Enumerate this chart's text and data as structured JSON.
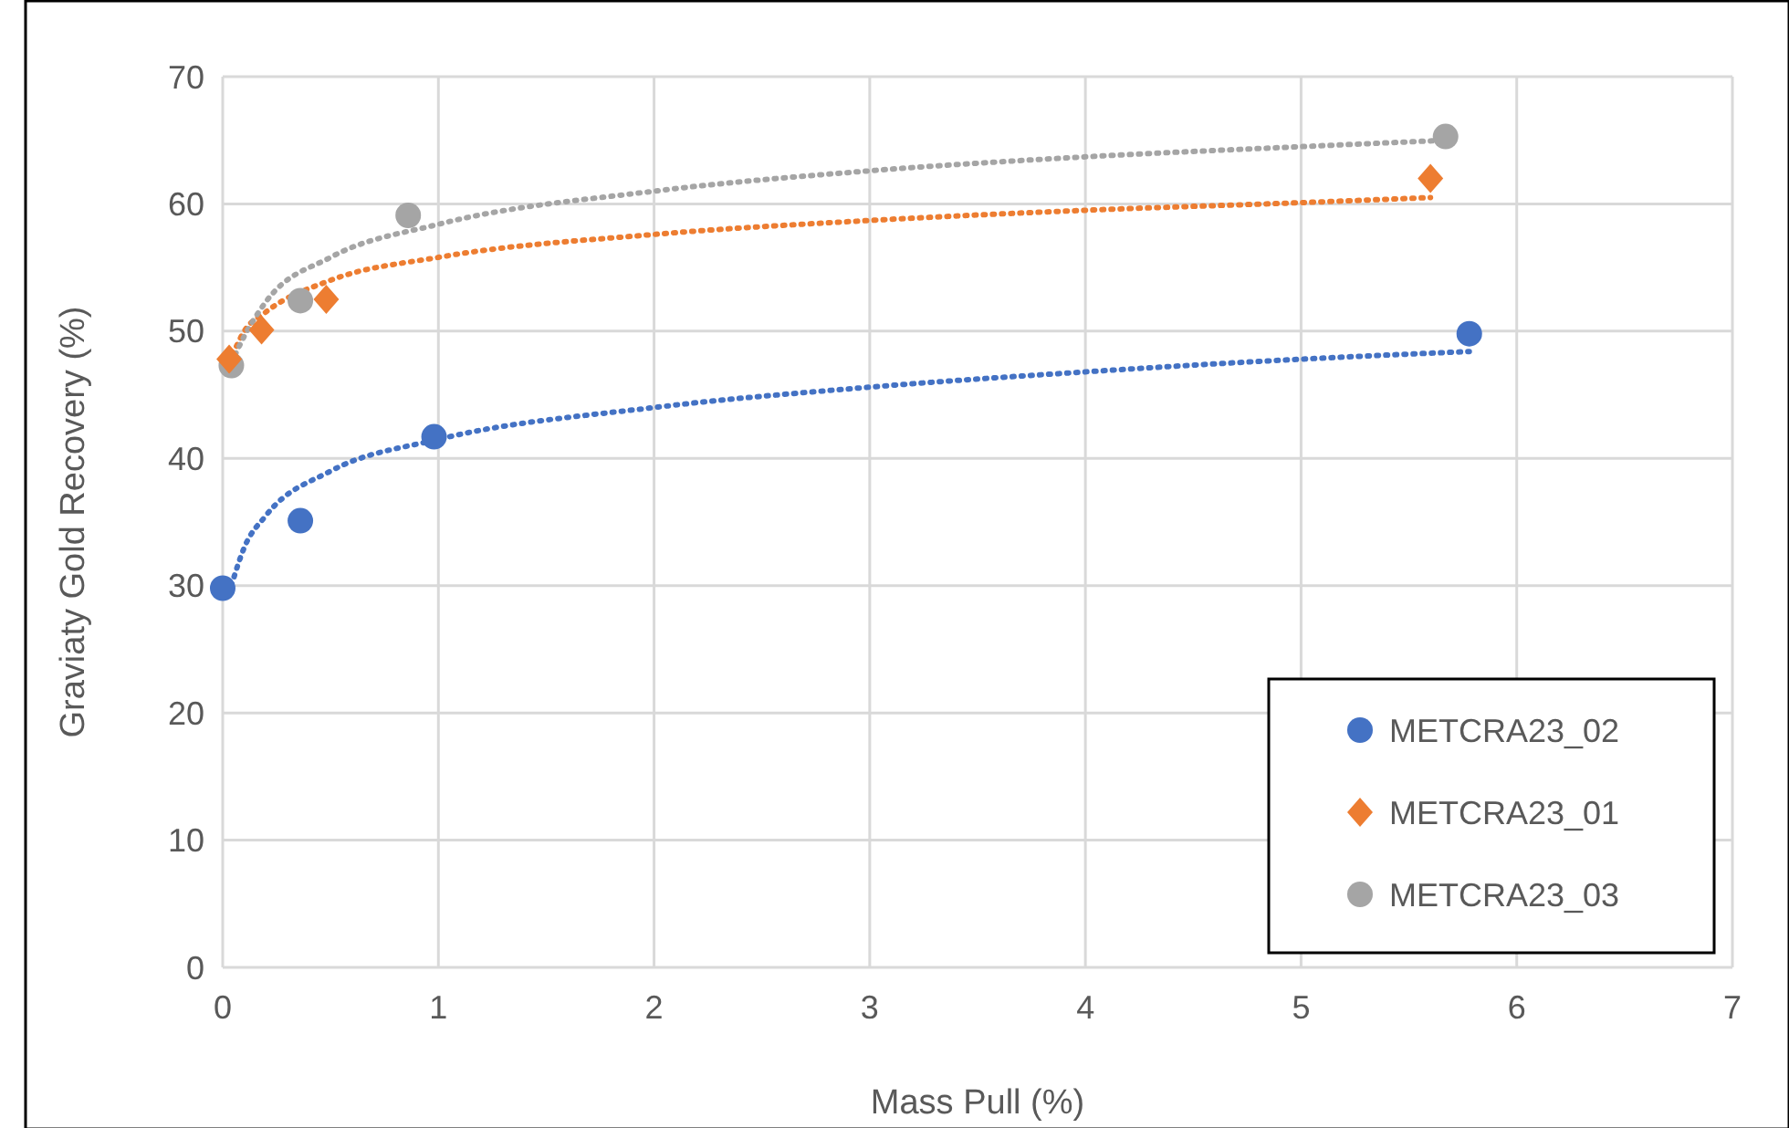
{
  "chart_data": {
    "type": "scatter",
    "xlabel": "Mass Pull (%)",
    "ylabel": "Graviaty Gold Recovery (%)",
    "xlim": [
      0,
      7
    ],
    "xticks": [
      0,
      1,
      2,
      3,
      4,
      5,
      6,
      7
    ],
    "ylim": [
      0,
      70
    ],
    "yticks": [
      0,
      10,
      20,
      30,
      40,
      50,
      60,
      70
    ],
    "grid": true,
    "legend": "bottom right",
    "series": [
      {
        "name": "METCRA23_02",
        "color": "#4472c4",
        "marker": "circle",
        "x": [
          0.0,
          0.36,
          0.98,
          5.78
        ],
        "values": [
          29.8,
          35.1,
          41.7,
          49.8
        ]
      },
      {
        "name": "METCRA23_01",
        "color": "#ed7d31",
        "marker": "diamond",
        "x": [
          0.03,
          0.18,
          0.48,
          5.6
        ],
        "values": [
          47.8,
          50.1,
          52.5,
          62.0
        ]
      },
      {
        "name": "METCRA23_03",
        "color": "#a5a5a5",
        "marker": "circle",
        "x": [
          0.04,
          0.36,
          0.86,
          5.67
        ],
        "values": [
          47.3,
          52.4,
          59.1,
          65.3
        ]
      },
      {
        "type": "line",
        "color": "#4472c4",
        "line_style": "dotted",
        "x": [
          0.04,
          0.1,
          0.2,
          0.5,
          1,
          2,
          3,
          4,
          5,
          5.78
        ],
        "values": [
          30,
          33,
          35.5,
          39,
          41.5,
          44,
          45.6,
          46.8,
          47.8,
          48.4
        ]
      },
      {
        "type": "line",
        "color": "#ed7d31",
        "line_style": "dotted",
        "x": [
          0.03,
          0.1,
          0.2,
          0.5,
          1,
          2,
          3,
          4,
          5,
          5.6
        ],
        "values": [
          47.5,
          50,
          51.5,
          54,
          55.8,
          57.6,
          58.7,
          59.5,
          60.1,
          60.5
        ]
      },
      {
        "type": "line",
        "color": "#a5a5a5",
        "line_style": "dotted",
        "x": [
          0.04,
          0.1,
          0.2,
          0.5,
          1,
          2,
          3,
          4,
          5,
          5.67
        ],
        "values": [
          47.5,
          49.6,
          52.3,
          55.8,
          58.4,
          61,
          62.6,
          63.7,
          64.5,
          65
        ]
      }
    ]
  }
}
